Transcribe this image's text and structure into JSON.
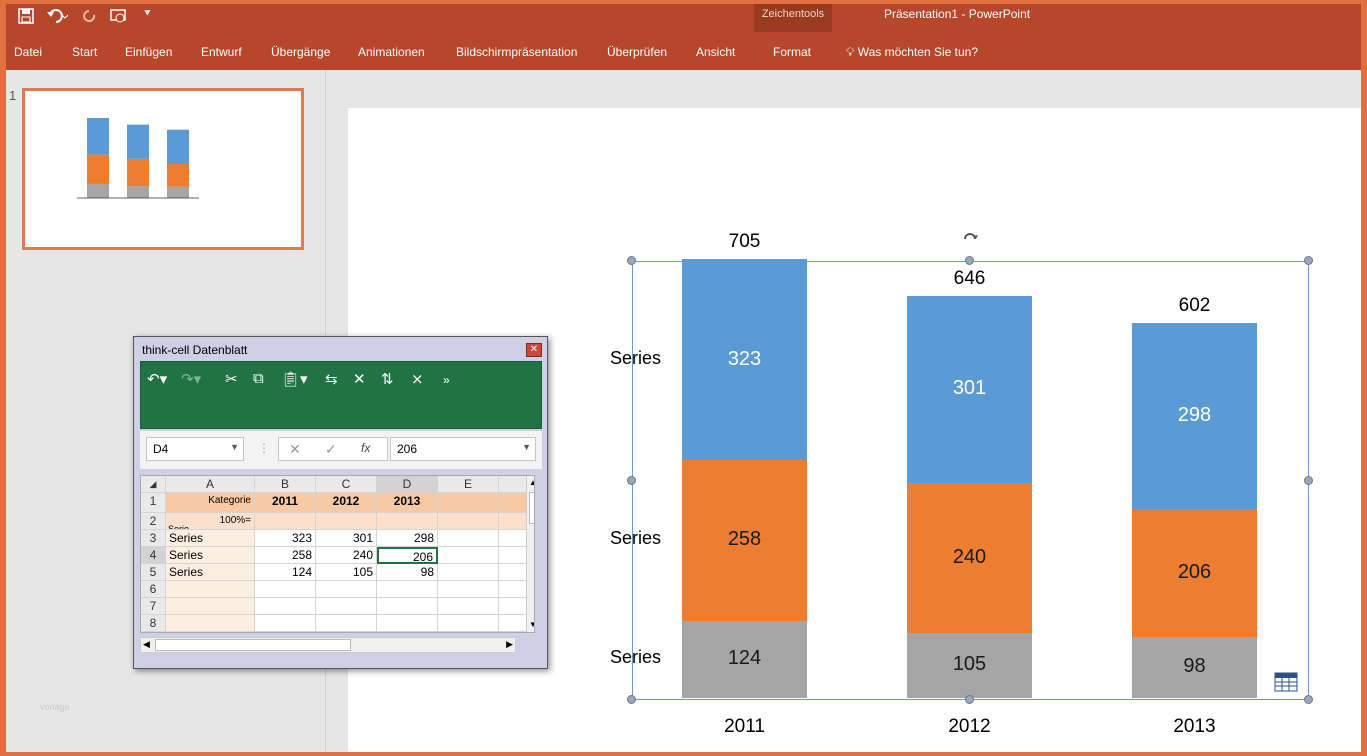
{
  "ribbon": {
    "title": "Präsentation1 - PowerPoint",
    "contextual_group": "Zeichentools",
    "tabs": [
      "Datei",
      "Start",
      "Einfügen",
      "Entwurf",
      "Übergänge",
      "Animationen",
      "Bildschirmpräsentation",
      "Überprüfen",
      "Ansicht",
      "Format"
    ],
    "active_tab": "Format",
    "tell_me": "Was möchten Sie tun?",
    "quick_access_icons": [
      "save-icon",
      "undo-icon",
      "redo-icon",
      "present-icon",
      "customize-icon"
    ]
  },
  "slides_pane": {
    "slide_number": "1",
    "watermark": "vorlage"
  },
  "chart_data": {
    "type": "bar",
    "stacked": true,
    "categories": [
      "2011",
      "2012",
      "2013"
    ],
    "totals": [
      705,
      646,
      602
    ],
    "series": [
      {
        "name": "Series",
        "values": [
          323,
          301,
          298
        ],
        "color": "#5b9bd5",
        "label_color": "#ffffff"
      },
      {
        "name": "Series",
        "values": [
          258,
          240,
          206
        ],
        "color": "#ed7d31",
        "label_color": "#1a1a1a"
      },
      {
        "name": "Series",
        "values": [
          124,
          105,
          98
        ],
        "color": "#a5a5a5",
        "label_color": "#1a1a1a"
      }
    ],
    "series_labels": [
      "Series",
      "Series",
      "Series"
    ],
    "title": "",
    "xlabel": "",
    "ylabel": "",
    "ylim": [
      0,
      705
    ],
    "grid": false,
    "legend": "left"
  },
  "datasheet": {
    "title": "think-cell Datenblatt",
    "name_box": "D4",
    "formula_value": "206",
    "col_headers": [
      "A",
      "B",
      "C",
      "D",
      "E"
    ],
    "row_headers": [
      "1",
      "2",
      "3",
      "4",
      "5",
      "6",
      "7",
      "8"
    ],
    "header_row": {
      "label": "Kategorie",
      "cats": [
        "2011",
        "2012",
        "2013"
      ]
    },
    "pct_row": {
      "label": "100%=",
      "serie": "Serie"
    },
    "rows": [
      {
        "label": "Series",
        "values": [
          "323",
          "301",
          "298"
        ]
      },
      {
        "label": "Series",
        "values": [
          "258",
          "240",
          "206"
        ]
      },
      {
        "label": "Series",
        "values": [
          "124",
          "105",
          "98"
        ]
      }
    ],
    "toolbar_icons": [
      "undo-icon",
      "redo-icon",
      "cut-icon",
      "copy-icon",
      "paste-icon",
      "insert-rows-icon",
      "delete-rows-icon",
      "transpose-icon",
      "delete-columns-icon",
      "more-icon"
    ]
  }
}
